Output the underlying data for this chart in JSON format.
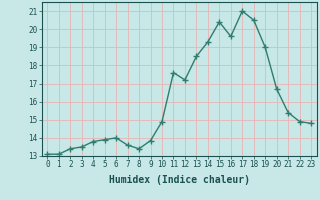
{
  "x": [
    0,
    1,
    2,
    3,
    4,
    5,
    6,
    7,
    8,
    9,
    10,
    11,
    12,
    13,
    14,
    15,
    16,
    17,
    18,
    19,
    20,
    21,
    22,
    23
  ],
  "y": [
    13.1,
    13.1,
    13.4,
    13.5,
    13.8,
    13.9,
    14.0,
    13.6,
    13.4,
    13.85,
    14.9,
    17.6,
    17.2,
    18.5,
    19.3,
    20.4,
    19.6,
    21.0,
    20.5,
    19.0,
    16.7,
    15.4,
    14.9,
    14.8
  ],
  "line_color": "#2e7d6e",
  "marker": "+",
  "marker_size": 4,
  "xlabel": "Humidex (Indice chaleur)",
  "xlabel_fontsize": 7,
  "ylim": [
    13,
    21.5
  ],
  "xlim": [
    -0.5,
    23.5
  ],
  "yticks": [
    13,
    14,
    15,
    16,
    17,
    18,
    19,
    20,
    21
  ],
  "xticks": [
    0,
    1,
    2,
    3,
    4,
    5,
    6,
    7,
    8,
    9,
    10,
    11,
    12,
    13,
    14,
    15,
    16,
    17,
    18,
    19,
    20,
    21,
    22,
    23
  ],
  "grid_color": "#e8b4b4",
  "bg_color": "#c8e8e8",
  "tick_fontsize": 5.5,
  "linewidth": 1.0
}
